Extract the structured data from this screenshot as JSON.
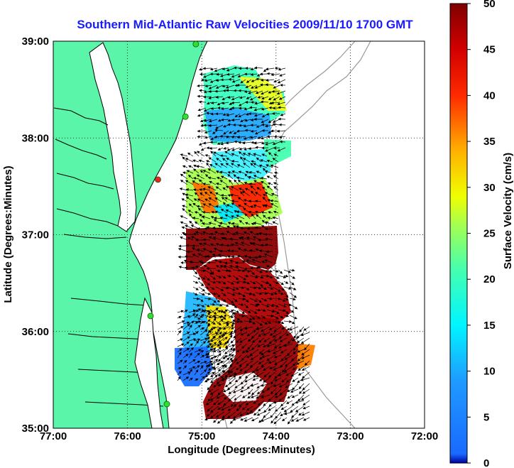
{
  "title": "Southern Mid-Atlantic Raw Velocities 2009/11/10 1700 GMT",
  "colors": {
    "title": "#1a1aff",
    "land": "#5af5a8",
    "background": "#ffffff"
  },
  "map": {
    "lon_range": [
      -77,
      -72
    ],
    "lat_range": [
      35,
      39
    ],
    "grid": "dotted",
    "x_ticks": [
      {
        "value": -77,
        "label": "77:00"
      },
      {
        "value": -76,
        "label": "76:00"
      },
      {
        "value": -75,
        "label": "75:00"
      },
      {
        "value": -74,
        "label": "74:00"
      },
      {
        "value": -73,
        "label": "73:00"
      },
      {
        "value": -72,
        "label": "72:00"
      }
    ],
    "y_ticks": [
      {
        "value": 35,
        "label": "35:00"
      },
      {
        "value": 36,
        "label": "36:00"
      },
      {
        "value": 37,
        "label": "37:00"
      },
      {
        "value": 38,
        "label": "38:00"
      },
      {
        "value": 39,
        "label": "39:00"
      }
    ],
    "xlabel": "Longitude (Degrees:Minutes)",
    "ylabel": "Latitude (Degrees:Minutes)"
  },
  "colorbar": {
    "label": "Surface Velocity (cm/s)",
    "min": 0,
    "max": 50,
    "colormap": "jet",
    "ticks": [
      {
        "value": 0,
        "label": "0"
      },
      {
        "value": 5,
        "label": "5"
      },
      {
        "value": 10,
        "label": "10"
      },
      {
        "value": 15,
        "label": "15"
      },
      {
        "value": 20,
        "label": "20"
      },
      {
        "value": 25,
        "label": "25"
      },
      {
        "value": 30,
        "label": "30"
      },
      {
        "value": 35,
        "label": "35"
      },
      {
        "value": 40,
        "label": "40"
      },
      {
        "value": 45,
        "label": "45"
      },
      {
        "value": 50,
        "label": "50"
      }
    ]
  },
  "stations": [
    {
      "lon": -75.08,
      "lat": 38.97,
      "color": "#33dd33"
    },
    {
      "lon": -75.22,
      "lat": 38.22,
      "color": "#33dd33"
    },
    {
      "lon": -75.59,
      "lat": 37.57,
      "color": "#ee2222"
    },
    {
      "lon": -75.69,
      "lat": 36.16,
      "color": "#33dd33"
    },
    {
      "lon": -75.47,
      "lat": 35.25,
      "color": "#33dd33"
    }
  ]
}
